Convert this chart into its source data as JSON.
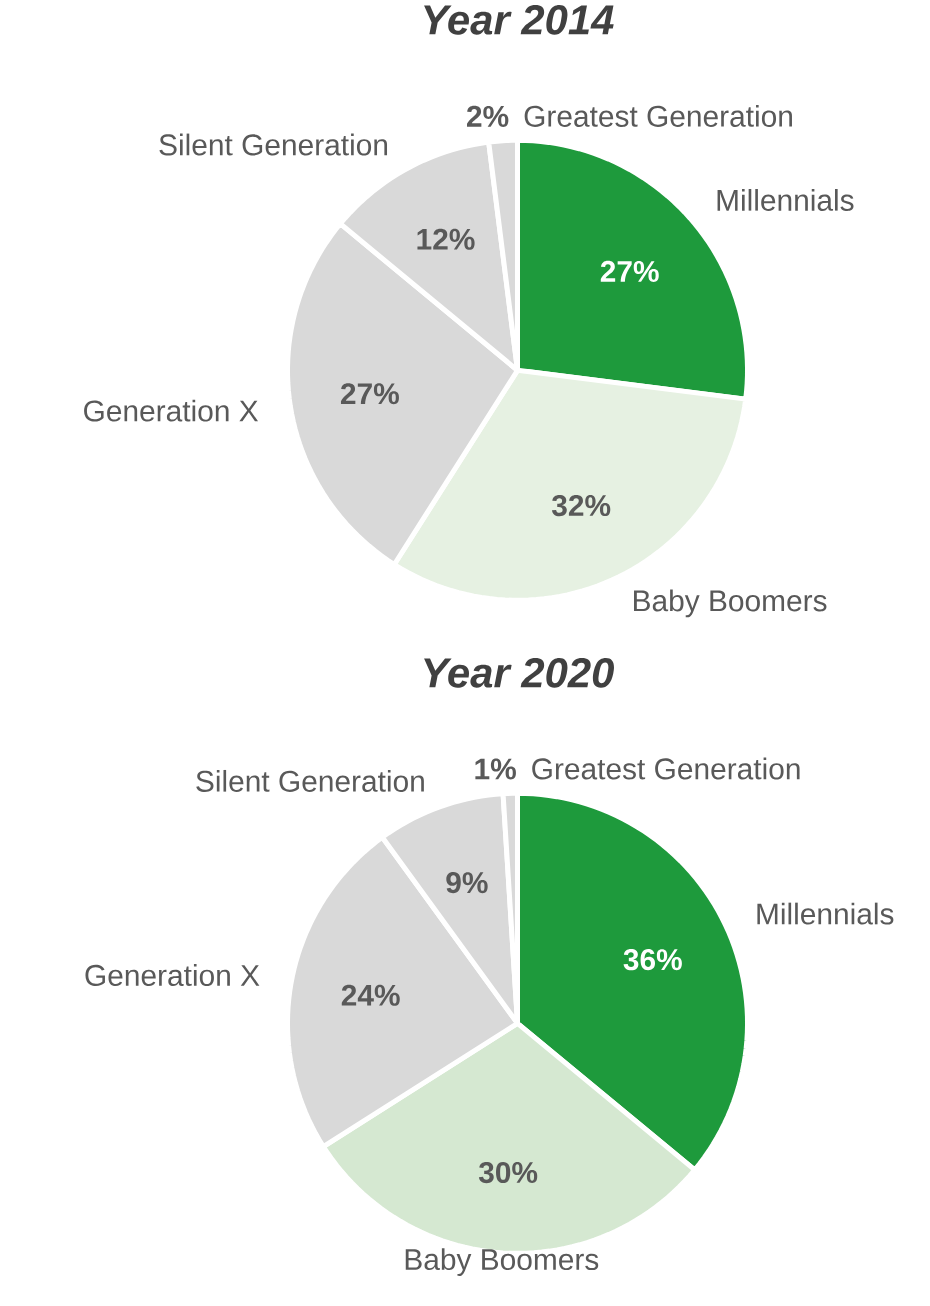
{
  "chart_data": [
    {
      "type": "pie",
      "title": "Year 2014",
      "categories": [
        "Millennials",
        "Baby Boomers",
        "Generation X",
        "Silent Generation",
        "Greatest Generation"
      ],
      "values": [
        27,
        32,
        27,
        12,
        2
      ],
      "value_labels": [
        "27%",
        "32%",
        "27%",
        "12%",
        "2%"
      ],
      "colors": [
        "#1e9a3c",
        "#e6f1e2",
        "#d9d9d9",
        "#d9d9d9",
        "#d9d9d9"
      ]
    },
    {
      "type": "pie",
      "title": "Year 2020",
      "categories": [
        "Millennials",
        "Baby Boomers",
        "Generation X",
        "Silent Generation",
        "Greatest Generation"
      ],
      "values": [
        36,
        30,
        24,
        9,
        1
      ],
      "value_labels": [
        "36%",
        "30%",
        "24%",
        "9%",
        "1%"
      ],
      "colors": [
        "#1e9a3c",
        "#d5e8d1",
        "#d9d9d9",
        "#d9d9d9",
        "#d9d9d9"
      ]
    }
  ]
}
